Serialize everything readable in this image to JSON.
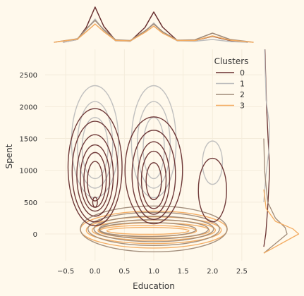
{
  "chart_data": {
    "type": "kde",
    "title": "",
    "xlabel": "Education",
    "ylabel": "Spent",
    "xlim": [
      -0.85,
      2.85
    ],
    "ylim": [
      -420,
      2900
    ],
    "xticks": [
      -0.5,
      0.0,
      0.5,
      1.0,
      1.5,
      2.0,
      2.5
    ],
    "xtick_labels": [
      "−0.5",
      "0.0",
      "0.5",
      "1.0",
      "1.5",
      "2.0",
      "2.5"
    ],
    "yticks": [
      0,
      500,
      1000,
      1500,
      2000,
      2500
    ],
    "ytick_labels": [
      "0",
      "500",
      "1000",
      "1500",
      "2000",
      "2500"
    ],
    "grid": true,
    "legend": {
      "title": "Clusters",
      "placement": "top-right"
    },
    "series": [
      {
        "name": "0",
        "color": "#682F2F",
        "contours": [
          {
            "x": 0.0,
            "y": 1050,
            "rx": 0.46,
            "ry": 920
          },
          {
            "x": 0.0,
            "y": 980,
            "rx": 0.39,
            "ry": 790
          },
          {
            "x": 0.0,
            "y": 920,
            "rx": 0.31,
            "ry": 640
          },
          {
            "x": 0.0,
            "y": 880,
            "rx": 0.25,
            "ry": 520
          },
          {
            "x": 0.0,
            "y": 850,
            "rx": 0.19,
            "ry": 430
          },
          {
            "x": 0.0,
            "y": 830,
            "rx": 0.13,
            "ry": 310
          },
          {
            "x": 0.0,
            "y": 500,
            "rx": 0.04,
            "ry": 80
          },
          {
            "x": 1.0,
            "y": 1000,
            "rx": 0.49,
            "ry": 840
          },
          {
            "x": 1.0,
            "y": 930,
            "rx": 0.37,
            "ry": 700
          },
          {
            "x": 1.0,
            "y": 880,
            "rx": 0.27,
            "ry": 570
          },
          {
            "x": 1.0,
            "y": 850,
            "rx": 0.21,
            "ry": 450
          },
          {
            "x": 1.0,
            "y": 830,
            "rx": 0.13,
            "ry": 290
          },
          {
            "x": 2.0,
            "y": 690,
            "rx": 0.24,
            "ry": 500
          }
        ],
        "marginal_x": [
          [
            -0.55,
            0
          ],
          [
            -0.3,
            0.08
          ],
          [
            -0.15,
            0.42
          ],
          [
            0.0,
            1.0
          ],
          [
            0.15,
            0.45
          ],
          [
            0.35,
            0.05
          ],
          [
            0.6,
            0.03
          ],
          [
            0.85,
            0.42
          ],
          [
            1.0,
            0.86
          ],
          [
            1.15,
            0.43
          ],
          [
            1.4,
            0.05
          ],
          [
            1.7,
            0.05
          ],
          [
            2.0,
            0.17
          ],
          [
            2.3,
            0.05
          ],
          [
            2.6,
            0
          ]
        ],
        "marginal_y": [
          [
            -200,
            0
          ],
          [
            0,
            0.05
          ],
          [
            400,
            0.1
          ],
          [
            1000,
            0.15
          ],
          [
            1500,
            0.11
          ],
          [
            2000,
            0.07
          ],
          [
            2900,
            0.03
          ]
        ]
      },
      {
        "name": "1",
        "color": "#BDBDBD",
        "contours": [
          {
            "x": 0.0,
            "y": 1450,
            "rx": 0.4,
            "ry": 880
          },
          {
            "x": 0.0,
            "y": 1400,
            "rx": 0.3,
            "ry": 680
          },
          {
            "x": 0.0,
            "y": 1350,
            "rx": 0.22,
            "ry": 480
          },
          {
            "x": 1.0,
            "y": 1450,
            "rx": 0.38,
            "ry": 880
          },
          {
            "x": 1.0,
            "y": 1400,
            "rx": 0.28,
            "ry": 680
          },
          {
            "x": 1.0,
            "y": 1350,
            "rx": 0.18,
            "ry": 480
          },
          {
            "x": 2.0,
            "y": 1120,
            "rx": 0.17,
            "ry": 340
          }
        ],
        "marginal_x": [
          [
            -0.55,
            0
          ],
          [
            -0.3,
            0.08
          ],
          [
            -0.15,
            0.36
          ],
          [
            0.0,
            0.66
          ],
          [
            0.15,
            0.33
          ],
          [
            0.35,
            0.04
          ],
          [
            0.6,
            0.03
          ],
          [
            0.85,
            0.3
          ],
          [
            1.0,
            0.55
          ],
          [
            1.15,
            0.28
          ],
          [
            1.4,
            0.04
          ],
          [
            1.7,
            0.03
          ],
          [
            2.0,
            0.08
          ],
          [
            2.3,
            0.02
          ],
          [
            2.6,
            0
          ]
        ],
        "marginal_y": [
          [
            500,
            0
          ],
          [
            900,
            0.05
          ],
          [
            1300,
            0.13
          ],
          [
            1700,
            0.15
          ],
          [
            2100,
            0.06
          ],
          [
            2900,
            0.02
          ]
        ]
      },
      {
        "name": "2",
        "color": "#9F8A78",
        "contours": [
          {
            "x": 1.0,
            "y": 80,
            "rx": 1.25,
            "ry": 360
          },
          {
            "x": 1.0,
            "y": 80,
            "rx": 1.12,
            "ry": 260
          },
          {
            "x": 1.0,
            "y": 80,
            "rx": 1.02,
            "ry": 200
          },
          {
            "x": 1.0,
            "y": 75,
            "rx": 0.93,
            "ry": 150
          },
          {
            "x": 0.9,
            "y": 70,
            "rx": 0.82,
            "ry": 110
          }
        ],
        "marginal_x": [
          [
            -0.7,
            0
          ],
          [
            -0.3,
            0.1
          ],
          [
            -0.15,
            0.38
          ],
          [
            0.0,
            0.62
          ],
          [
            0.15,
            0.36
          ],
          [
            0.35,
            0.07
          ],
          [
            0.6,
            0.05
          ],
          [
            0.85,
            0.32
          ],
          [
            1.0,
            0.52
          ],
          [
            1.15,
            0.3
          ],
          [
            1.4,
            0.06
          ],
          [
            1.7,
            0.07
          ],
          [
            2.0,
            0.26
          ],
          [
            2.3,
            0.08
          ],
          [
            2.7,
            0
          ]
        ],
        "marginal_y": [
          [
            -300,
            0
          ],
          [
            0,
            0.6
          ],
          [
            100,
            0.55
          ],
          [
            250,
            0.3
          ],
          [
            500,
            0.1
          ],
          [
            1000,
            0.02
          ],
          [
            1500,
            0
          ]
        ]
      },
      {
        "name": "3",
        "color": "#F3AB60",
        "contours": [
          {
            "x": 1.0,
            "y": 70,
            "rx": 1.25,
            "ry": 290
          },
          {
            "x": 1.0,
            "y": 60,
            "rx": 1.15,
            "ry": 210
          },
          {
            "x": 1.0,
            "y": 60,
            "rx": 1.05,
            "ry": 160
          },
          {
            "x": 1.0,
            "y": 55,
            "rx": 0.95,
            "ry": 120
          },
          {
            "x": 0.9,
            "y": 50,
            "rx": 0.83,
            "ry": 85
          },
          {
            "x": 0.9,
            "y": 50,
            "rx": 0.7,
            "ry": 55
          }
        ],
        "marginal_x": [
          [
            -0.7,
            0
          ],
          [
            -0.3,
            0.09
          ],
          [
            -0.15,
            0.3
          ],
          [
            0.0,
            0.52
          ],
          [
            0.15,
            0.3
          ],
          [
            0.35,
            0.05
          ],
          [
            0.6,
            0.04
          ],
          [
            0.85,
            0.28
          ],
          [
            1.0,
            0.46
          ],
          [
            1.15,
            0.26
          ],
          [
            1.4,
            0.05
          ],
          [
            1.7,
            0.05
          ],
          [
            2.0,
            0.18
          ],
          [
            2.3,
            0.06
          ],
          [
            2.7,
            0
          ]
        ],
        "marginal_y": [
          [
            -300,
            0
          ],
          [
            0,
            0.9
          ],
          [
            80,
            0.75
          ],
          [
            200,
            0.3
          ],
          [
            400,
            0.06
          ],
          [
            700,
            0
          ]
        ]
      }
    ]
  }
}
